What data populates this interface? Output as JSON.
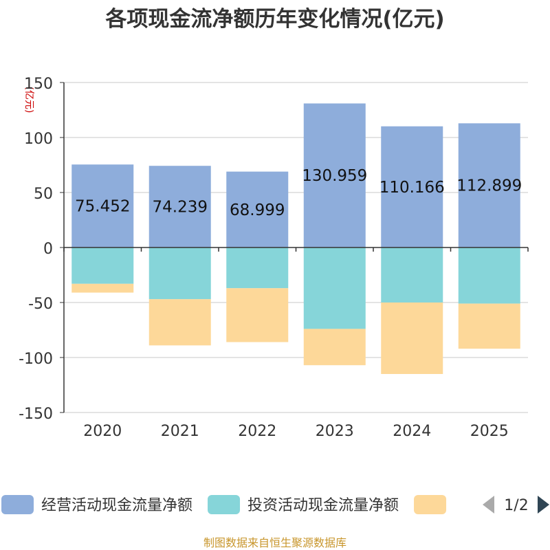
{
  "chart_data": {
    "type": "bar",
    "stacked": true,
    "title": "各项现金流净额历年变化情况(亿元)",
    "ylabel": "(亿元)",
    "xlabel": "",
    "ylim": [
      -150,
      150
    ],
    "yticks": [
      150,
      100,
      50,
      0,
      -50,
      -100,
      -150
    ],
    "grid": true,
    "categories": [
      "2020",
      "2021",
      "2022",
      "2023",
      "2024",
      "2025"
    ],
    "series": [
      {
        "name": "经营活动现金流量净额",
        "color": "#8eaddb",
        "values": [
          75.452,
          74.239,
          68.999,
          130.959,
          110.166,
          112.899
        ],
        "show_labels": true
      },
      {
        "name": "投资活动现金流量净额",
        "color": "#86d5d9",
        "values": [
          -33,
          -47,
          -37,
          -74,
          -50,
          -51
        ],
        "show_labels": false
      },
      {
        "name": "",
        "color": "#fdd899",
        "values": [
          -8,
          -42,
          -49,
          -33,
          -65,
          -41
        ],
        "show_labels": false
      }
    ],
    "legend": {
      "position": "bottom",
      "page_indicator": "1/2"
    },
    "source": "制图数据来自恒生聚源数据库"
  },
  "colors": {
    "title": "#333333",
    "axis": "#333333",
    "grid": "#c8c8c8",
    "ylabel": "#cc0000",
    "source": "#c8962c",
    "arrow_prev": "#aaaaaa",
    "arrow_next": "#2f4554"
  }
}
